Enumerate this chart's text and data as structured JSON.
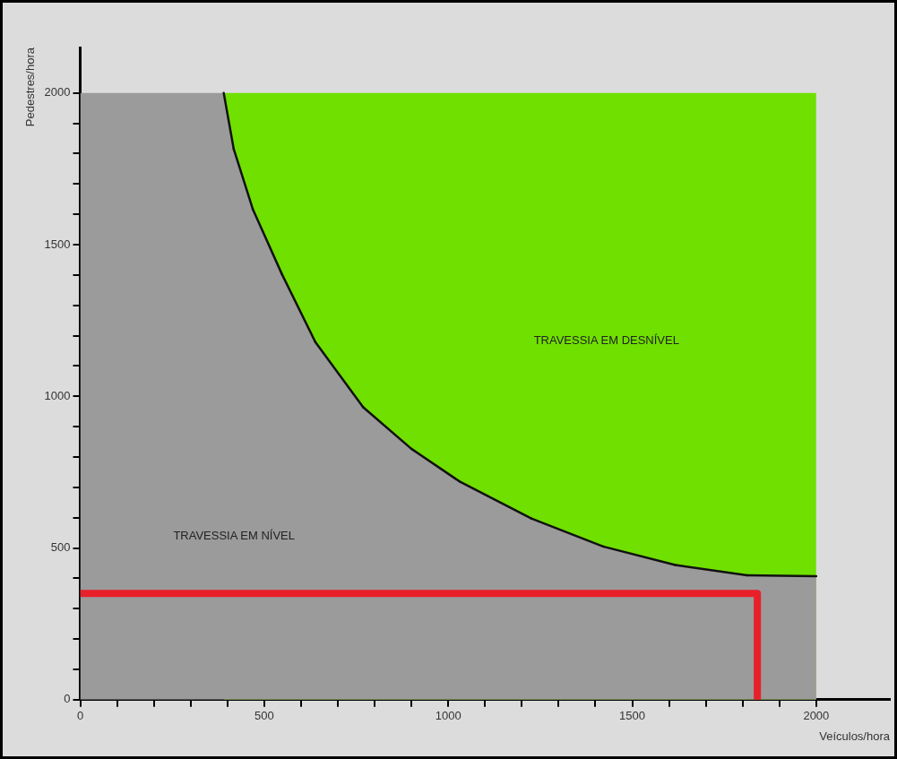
{
  "chart_data": {
    "type": "area",
    "xlabel": "Veículos/hora",
    "ylabel": "Pedestres/hora",
    "xlim": [
      0,
      2200
    ],
    "ylim": [
      0,
      2150
    ],
    "xticks": [
      0,
      {
        "value": 100,
        "label": null
      },
      {
        "value": 200,
        "label": null
      },
      {
        "value": 300,
        "label": null
      },
      {
        "value": 400,
        "label": null
      },
      500,
      {
        "value": 600,
        "label": null
      },
      {
        "value": 700,
        "label": null
      },
      {
        "value": 800,
        "label": null
      },
      {
        "value": 900,
        "label": null
      },
      1000,
      {
        "value": 1100,
        "label": null
      },
      {
        "value": 1200,
        "label": null
      },
      {
        "value": 1300,
        "label": null
      },
      {
        "value": 1400,
        "label": null
      },
      1500,
      {
        "value": 1600,
        "label": null
      },
      {
        "value": 1700,
        "label": null
      },
      {
        "value": 1800,
        "label": null
      },
      {
        "value": 1900,
        "label": null
      },
      2000
    ],
    "yticks": [
      0,
      {
        "value": 100,
        "label": null
      },
      {
        "value": 200,
        "label": null
      },
      {
        "value": 300,
        "label": null
      },
      {
        "value": 400,
        "label": null
      },
      500,
      {
        "value": 600,
        "label": null
      },
      {
        "value": 700,
        "label": null
      },
      {
        "value": 800,
        "label": null
      },
      {
        "value": 900,
        "label": null
      },
      1000,
      {
        "value": 1100,
        "label": null
      },
      {
        "value": 1200,
        "label": null
      },
      {
        "value": 1300,
        "label": null
      },
      {
        "value": 1400,
        "label": null
      },
      1500,
      {
        "value": 1600,
        "label": null
      },
      {
        "value": 1700,
        "label": null
      },
      {
        "value": 1800,
        "label": null
      },
      {
        "value": 1900,
        "label": null
      },
      2000
    ],
    "grid": false,
    "legend": false,
    "series": [
      {
        "color": "#70e000",
        "x": [
          390,
          2000
        ],
        "values": [
          2000,
          2000
        ]
      },
      {
        "color": "#9b9b9b",
        "x": [
          0,
          390,
          417,
          469,
          548,
          639,
          769,
          900,
          1030,
          1226,
          1421,
          1617,
          1812,
          2000
        ],
        "values": [
          2000,
          2000,
          1816,
          1617,
          1403,
          1179,
          964,
          827,
          720,
          597,
          505,
          444,
          410,
          407
        ]
      },
      {
        "type": "line",
        "color": "#e8202a",
        "x": [
          0,
          1840,
          1840
        ],
        "values": [
          350,
          350,
          0
        ]
      }
    ],
    "annotations": [
      "TRAVESSIA EM DESNÍVEL",
      "TRAVESSIA EM NÍVEL"
    ]
  }
}
